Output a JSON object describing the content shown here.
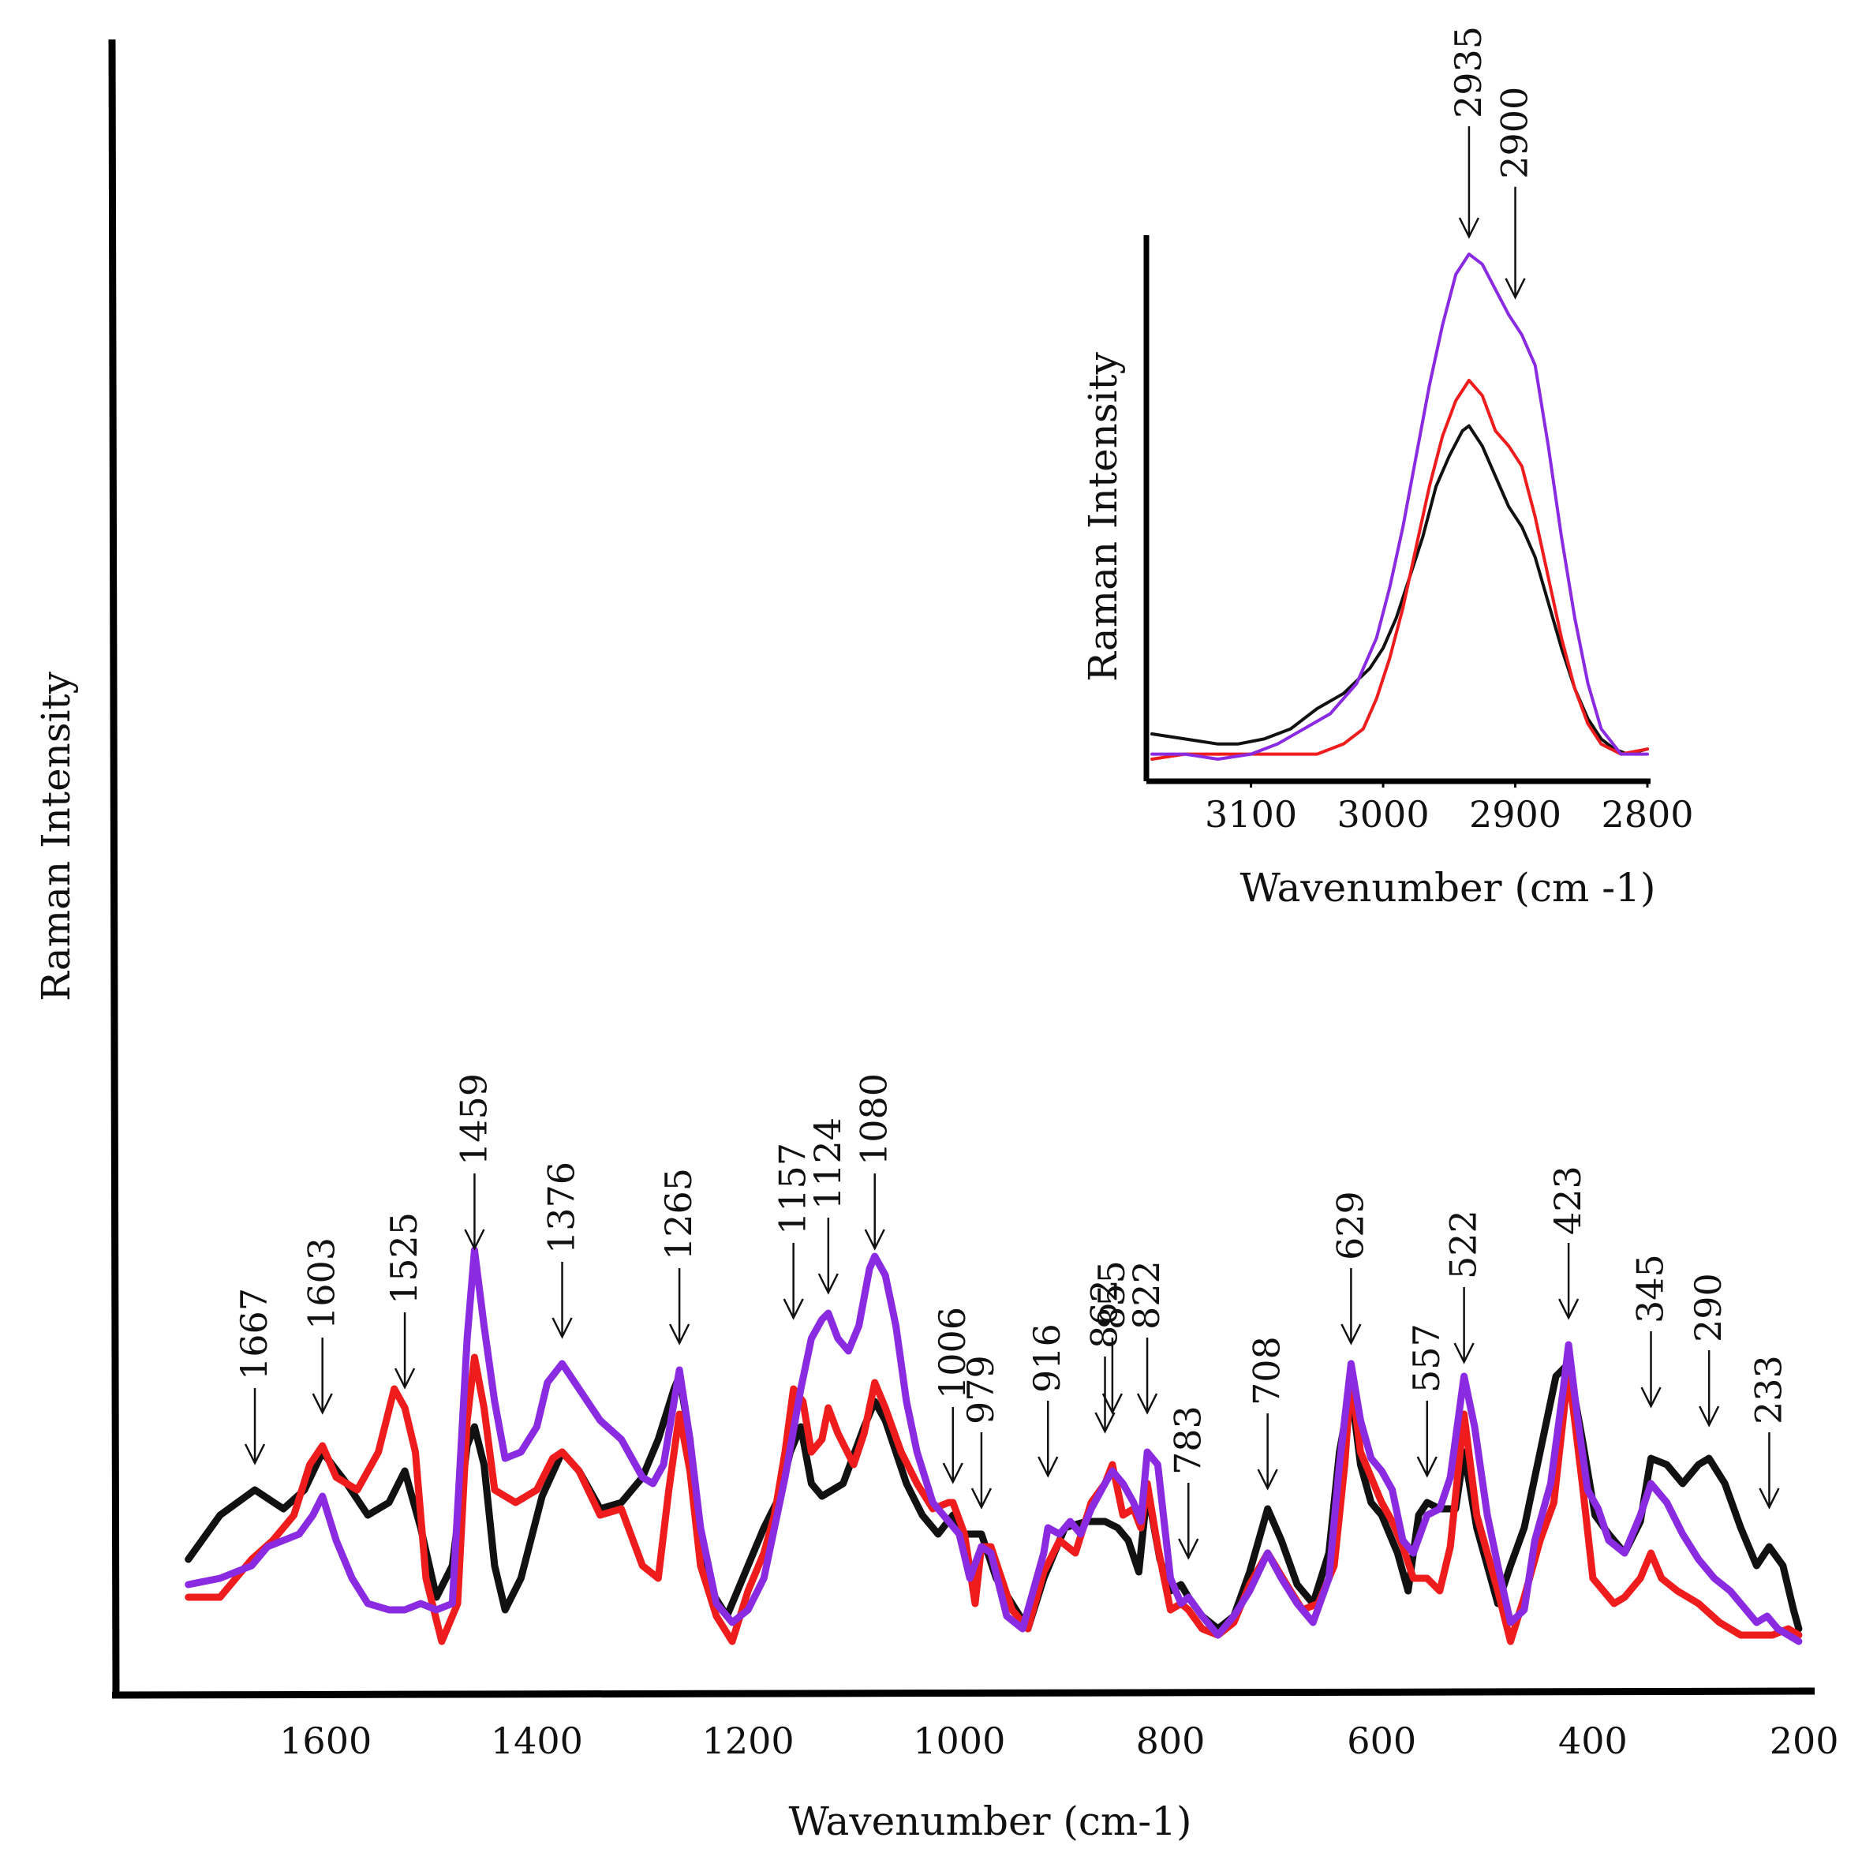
{
  "colors": {
    "black_series": "#111111",
    "red_series": "#ee1c1c",
    "purple_series": "#8a2be2",
    "axes": "#000000"
  },
  "chart_data": [
    {
      "type": "line",
      "title": "",
      "xlabel": "Wavenumber (cm-1)",
      "ylabel": "Raman Intensity",
      "x_axis_reversed": true,
      "xlim": [
        1800,
        190
      ],
      "ylim": [
        0,
        1
      ],
      "xticks": [
        "1600",
        "1400",
        "1200",
        "1000",
        "800",
        "600",
        "400",
        "200"
      ],
      "grid": false,
      "legend": "none",
      "annotations": [
        {
          "label": "1667",
          "x": 1667,
          "y": 0.26
        },
        {
          "label": "1603",
          "x": 1603,
          "y": 0.34
        },
        {
          "label": "1525",
          "x": 1525,
          "y": 0.38
        },
        {
          "label": "1459",
          "x": 1459,
          "y": 0.6
        },
        {
          "label": "1376",
          "x": 1376,
          "y": 0.46
        },
        {
          "label": "1265",
          "x": 1265,
          "y": 0.45
        },
        {
          "label": "1157",
          "x": 1157,
          "y": 0.49
        },
        {
          "label": "1124",
          "x": 1124,
          "y": 0.53
        },
        {
          "label": "1080",
          "x": 1080,
          "y": 0.6
        },
        {
          "label": "1006",
          "x": 1006,
          "y": 0.23
        },
        {
          "label": "979",
          "x": 979,
          "y": 0.19
        },
        {
          "label": "916",
          "x": 916,
          "y": 0.24
        },
        {
          "label": "862",
          "x": 862,
          "y": 0.31
        },
        {
          "label": "855",
          "x": 855,
          "y": 0.34
        },
        {
          "label": "822",
          "x": 822,
          "y": 0.34
        },
        {
          "label": "783",
          "x": 783,
          "y": 0.11
        },
        {
          "label": "708",
          "x": 708,
          "y": 0.22
        },
        {
          "label": "629",
          "x": 629,
          "y": 0.45
        },
        {
          "label": "557",
          "x": 557,
          "y": 0.24
        },
        {
          "label": "522",
          "x": 522,
          "y": 0.42
        },
        {
          "label": "423",
          "x": 423,
          "y": 0.49
        },
        {
          "label": "345",
          "x": 345,
          "y": 0.35
        },
        {
          "label": "290",
          "x": 290,
          "y": 0.32
        },
        {
          "label": "233",
          "x": 233,
          "y": 0.19
        }
      ],
      "series": [
        {
          "color": "#111111",
          "x": [
            1730,
            1700,
            1667,
            1640,
            1620,
            1603,
            1580,
            1560,
            1540,
            1525,
            1510,
            1495,
            1480,
            1466,
            1459,
            1450,
            1440,
            1430,
            1415,
            1395,
            1376,
            1360,
            1340,
            1320,
            1300,
            1285,
            1270,
            1265,
            1255,
            1245,
            1235,
            1220,
            1200,
            1185,
            1170,
            1160,
            1150,
            1140,
            1130,
            1110,
            1090,
            1080,
            1070,
            1050,
            1035,
            1020,
            1006,
            995,
            979,
            965,
            950,
            935,
            920,
            900,
            880,
            862,
            850,
            840,
            830,
            822,
            810,
            800,
            790,
            783,
            770,
            755,
            740,
            725,
            708,
            695,
            680,
            665,
            650,
            640,
            629,
            620,
            610,
            600,
            585,
            575,
            565,
            557,
            545,
            530,
            522,
            510,
            500,
            490,
            478,
            465,
            450,
            435,
            423,
            410,
            398,
            385,
            370,
            355,
            345,
            330,
            315,
            300,
            290,
            275,
            260,
            245,
            233,
            220,
            210,
            205
          ],
          "values": [
            0.13,
            0.2,
            0.24,
            0.21,
            0.24,
            0.3,
            0.25,
            0.2,
            0.22,
            0.27,
            0.18,
            0.07,
            0.12,
            0.31,
            0.34,
            0.28,
            0.12,
            0.05,
            0.1,
            0.23,
            0.3,
            0.27,
            0.21,
            0.22,
            0.26,
            0.32,
            0.4,
            0.42,
            0.32,
            0.14,
            0.08,
            0.04,
            0.12,
            0.18,
            0.23,
            0.3,
            0.34,
            0.25,
            0.23,
            0.25,
            0.34,
            0.38,
            0.35,
            0.25,
            0.2,
            0.17,
            0.2,
            0.17,
            0.17,
            0.1,
            0.06,
            0.02,
            0.1,
            0.18,
            0.19,
            0.19,
            0.18,
            0.16,
            0.11,
            0.24,
            0.13,
            0.08,
            0.09,
            0.07,
            0.04,
            0.02,
            0.04,
            0.11,
            0.21,
            0.16,
            0.09,
            0.06,
            0.14,
            0.3,
            0.4,
            0.28,
            0.22,
            0.2,
            0.14,
            0.08,
            0.2,
            0.22,
            0.21,
            0.21,
            0.3,
            0.18,
            0.12,
            0.06,
            0.12,
            0.18,
            0.3,
            0.42,
            0.44,
            0.32,
            0.2,
            0.17,
            0.14,
            0.19,
            0.29,
            0.28,
            0.25,
            0.28,
            0.29,
            0.25,
            0.18,
            0.12,
            0.15,
            0.12,
            0.05,
            0.02
          ]
        },
        {
          "color": "#ee1c1c",
          "x": [
            1730,
            1700,
            1670,
            1650,
            1630,
            1615,
            1603,
            1590,
            1570,
            1550,
            1535,
            1525,
            1515,
            1505,
            1490,
            1475,
            1466,
            1459,
            1450,
            1440,
            1420,
            1400,
            1385,
            1376,
            1360,
            1340,
            1320,
            1300,
            1285,
            1275,
            1265,
            1255,
            1245,
            1230,
            1215,
            1200,
            1185,
            1175,
            1165,
            1157,
            1148,
            1140,
            1130,
            1124,
            1115,
            1100,
            1090,
            1080,
            1070,
            1055,
            1040,
            1025,
            1010,
            1006,
            995,
            985,
            979,
            970,
            950,
            935,
            920,
            905,
            890,
            875,
            862,
            855,
            845,
            835,
            828,
            822,
            812,
            800,
            790,
            783,
            770,
            755,
            740,
            725,
            708,
            690,
            675,
            660,
            645,
            635,
            629,
            620,
            610,
            600,
            590,
            580,
            570,
            557,
            545,
            535,
            522,
            510,
            500,
            490,
            478,
            465,
            450,
            437,
            423,
            410,
            400,
            390,
            380,
            370,
            355,
            345,
            335,
            320,
            300,
            280,
            260,
            245,
            230,
            215,
            205
          ],
          "values": [
            0.07,
            0.07,
            0.13,
            0.16,
            0.2,
            0.28,
            0.31,
            0.26,
            0.24,
            0.3,
            0.4,
            0.37,
            0.3,
            0.1,
            0.0,
            0.06,
            0.35,
            0.45,
            0.37,
            0.24,
            0.22,
            0.24,
            0.29,
            0.3,
            0.27,
            0.2,
            0.21,
            0.12,
            0.1,
            0.24,
            0.36,
            0.27,
            0.12,
            0.04,
            0.0,
            0.08,
            0.14,
            0.2,
            0.3,
            0.4,
            0.38,
            0.3,
            0.32,
            0.37,
            0.33,
            0.28,
            0.33,
            0.41,
            0.37,
            0.3,
            0.25,
            0.21,
            0.22,
            0.22,
            0.17,
            0.06,
            0.15,
            0.15,
            0.05,
            0.02,
            0.11,
            0.16,
            0.14,
            0.22,
            0.25,
            0.28,
            0.2,
            0.21,
            0.18,
            0.25,
            0.15,
            0.05,
            0.06,
            0.05,
            0.02,
            0.01,
            0.03,
            0.09,
            0.14,
            0.09,
            0.05,
            0.06,
            0.12,
            0.28,
            0.42,
            0.3,
            0.26,
            0.22,
            0.19,
            0.15,
            0.1,
            0.1,
            0.08,
            0.15,
            0.36,
            0.2,
            0.14,
            0.08,
            0.0,
            0.07,
            0.16,
            0.22,
            0.43,
            0.25,
            0.1,
            0.08,
            0.06,
            0.07,
            0.1,
            0.14,
            0.1,
            0.08,
            0.06,
            0.03,
            0.01,
            0.01,
            0.01,
            0.02,
            0.01
          ]
        },
        {
          "color": "#8a2be2",
          "x": [
            1730,
            1700,
            1670,
            1655,
            1640,
            1625,
            1612,
            1603,
            1590,
            1575,
            1560,
            1540,
            1525,
            1510,
            1495,
            1480,
            1466,
            1459,
            1450,
            1440,
            1430,
            1415,
            1400,
            1390,
            1376,
            1360,
            1340,
            1320,
            1300,
            1290,
            1280,
            1270,
            1265,
            1255,
            1245,
            1230,
            1215,
            1200,
            1185,
            1175,
            1165,
            1150,
            1140,
            1130,
            1124,
            1115,
            1105,
            1095,
            1085,
            1080,
            1070,
            1060,
            1050,
            1040,
            1025,
            1010,
            1000,
            990,
            979,
            970,
            955,
            940,
            930,
            920,
            916,
            905,
            895,
            885,
            875,
            862,
            855,
            845,
            835,
            828,
            822,
            812,
            800,
            790,
            783,
            770,
            755,
            740,
            725,
            708,
            695,
            680,
            665,
            650,
            640,
            629,
            620,
            610,
            600,
            590,
            580,
            570,
            557,
            545,
            535,
            522,
            512,
            500,
            490,
            478,
            465,
            455,
            440,
            428,
            423,
            415,
            405,
            395,
            385,
            370,
            355,
            345,
            330,
            315,
            300,
            285,
            270,
            255,
            245,
            235,
            225,
            215,
            205
          ],
          "values": [
            0.09,
            0.1,
            0.12,
            0.15,
            0.16,
            0.17,
            0.2,
            0.23,
            0.16,
            0.1,
            0.06,
            0.05,
            0.05,
            0.06,
            0.05,
            0.06,
            0.48,
            0.62,
            0.5,
            0.38,
            0.29,
            0.3,
            0.34,
            0.41,
            0.44,
            0.4,
            0.35,
            0.32,
            0.26,
            0.25,
            0.28,
            0.38,
            0.43,
            0.32,
            0.18,
            0.06,
            0.03,
            0.05,
            0.1,
            0.18,
            0.26,
            0.4,
            0.48,
            0.51,
            0.52,
            0.48,
            0.46,
            0.5,
            0.59,
            0.61,
            0.58,
            0.5,
            0.38,
            0.3,
            0.22,
            0.19,
            0.17,
            0.1,
            0.15,
            0.14,
            0.04,
            0.02,
            0.08,
            0.14,
            0.18,
            0.17,
            0.19,
            0.17,
            0.21,
            0.25,
            0.27,
            0.25,
            0.22,
            0.19,
            0.3,
            0.28,
            0.1,
            0.06,
            0.07,
            0.04,
            0.01,
            0.04,
            0.08,
            0.14,
            0.1,
            0.06,
            0.03,
            0.1,
            0.28,
            0.44,
            0.35,
            0.29,
            0.27,
            0.24,
            0.16,
            0.14,
            0.2,
            0.21,
            0.26,
            0.42,
            0.34,
            0.2,
            0.12,
            0.03,
            0.05,
            0.16,
            0.25,
            0.4,
            0.47,
            0.36,
            0.24,
            0.21,
            0.16,
            0.14,
            0.2,
            0.25,
            0.22,
            0.17,
            0.13,
            0.1,
            0.08,
            0.05,
            0.03,
            0.04,
            0.02,
            0.01,
            0.0
          ]
        }
      ]
    },
    {
      "type": "line",
      "title": "",
      "xlabel": "Wavenumber (cm -1)",
      "ylabel": "Raman Intensity",
      "x_axis_reversed": true,
      "xlim": [
        3175,
        2800
      ],
      "ylim": [
        0,
        1
      ],
      "xticks": [
        "3100",
        "3000",
        "2900",
        "2800"
      ],
      "grid": false,
      "legend": "none",
      "annotations": [
        {
          "label": "2935",
          "x": 2935,
          "y": 1.0
        },
        {
          "label": "2900",
          "x": 2900,
          "y": 0.88
        }
      ],
      "series": [
        {
          "color": "#111111",
          "x": [
            3175,
            3150,
            3125,
            3110,
            3090,
            3070,
            3050,
            3030,
            3010,
            3000,
            2990,
            2980,
            2970,
            2960,
            2950,
            2940,
            2935,
            2925,
            2915,
            2905,
            2895,
            2885,
            2875,
            2865,
            2855,
            2845,
            2835,
            2825,
            2815,
            2800
          ],
          "values": [
            0.05,
            0.04,
            0.03,
            0.03,
            0.04,
            0.06,
            0.1,
            0.13,
            0.18,
            0.22,
            0.28,
            0.36,
            0.44,
            0.54,
            0.6,
            0.65,
            0.66,
            0.62,
            0.56,
            0.5,
            0.46,
            0.4,
            0.31,
            0.22,
            0.14,
            0.08,
            0.04,
            0.02,
            0.01,
            0.02
          ]
        },
        {
          "color": "#ee1c1c",
          "x": [
            3175,
            3150,
            3125,
            3100,
            3075,
            3050,
            3030,
            3015,
            3005,
            2995,
            2985,
            2975,
            2965,
            2955,
            2945,
            2935,
            2925,
            2915,
            2905,
            2895,
            2885,
            2875,
            2865,
            2855,
            2845,
            2835,
            2820,
            2800
          ],
          "values": [
            0.0,
            0.01,
            0.01,
            0.01,
            0.01,
            0.01,
            0.03,
            0.06,
            0.12,
            0.2,
            0.3,
            0.42,
            0.54,
            0.64,
            0.71,
            0.75,
            0.72,
            0.65,
            0.62,
            0.58,
            0.48,
            0.36,
            0.24,
            0.14,
            0.07,
            0.03,
            0.01,
            0.02
          ]
        },
        {
          "color": "#8a2be2",
          "x": [
            3175,
            3150,
            3125,
            3100,
            3080,
            3060,
            3040,
            3020,
            3005,
            2995,
            2985,
            2975,
            2965,
            2955,
            2945,
            2935,
            2925,
            2915,
            2905,
            2895,
            2885,
            2875,
            2865,
            2855,
            2845,
            2835,
            2820,
            2800
          ],
          "values": [
            0.01,
            0.01,
            0.0,
            0.01,
            0.03,
            0.06,
            0.09,
            0.15,
            0.24,
            0.34,
            0.46,
            0.6,
            0.74,
            0.86,
            0.96,
            1.0,
            0.98,
            0.93,
            0.88,
            0.84,
            0.78,
            0.62,
            0.44,
            0.28,
            0.15,
            0.06,
            0.01,
            0.01
          ]
        }
      ]
    }
  ]
}
